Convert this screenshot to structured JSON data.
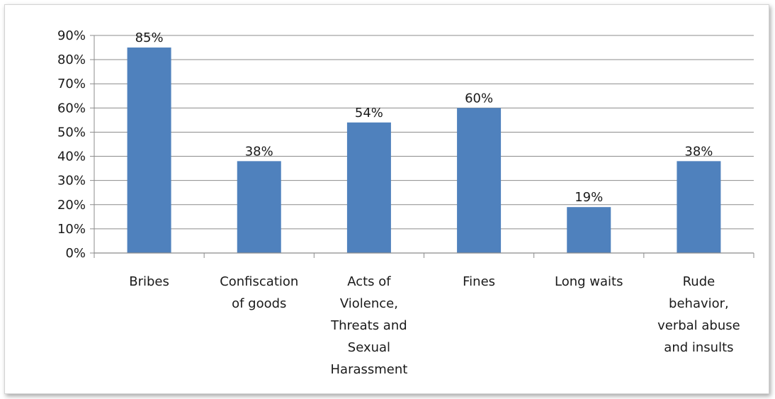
{
  "chart_data": {
    "type": "bar",
    "title": "",
    "xlabel": "",
    "ylabel": "",
    "categories": [
      [
        "Bribes"
      ],
      [
        "Confiscation",
        "of goods"
      ],
      [
        "Acts of",
        "Violence,",
        "Threats and",
        "Sexual",
        "Harassment"
      ],
      [
        "Fines"
      ],
      [
        "Long waits"
      ],
      [
        "Rude",
        "behavior,",
        "verbal abuse",
        "and insults"
      ]
    ],
    "values": [
      85,
      38,
      54,
      60,
      19,
      38
    ],
    "data_labels": [
      "85%",
      "38%",
      "54%",
      "60%",
      "19%",
      "38%"
    ],
    "ylim": [
      0,
      90
    ],
    "yticks": [
      0,
      10,
      20,
      30,
      40,
      50,
      60,
      70,
      80,
      90
    ],
    "ytick_labels": [
      "0%",
      "10%",
      "20%",
      "30%",
      "40%",
      "50%",
      "60%",
      "70%",
      "80%",
      "90%"
    ],
    "grid": true,
    "legend": "none",
    "colors": {
      "bar": "#4F81BD",
      "grid": "#8c8c8c",
      "axis": "#8c8c8c"
    }
  }
}
